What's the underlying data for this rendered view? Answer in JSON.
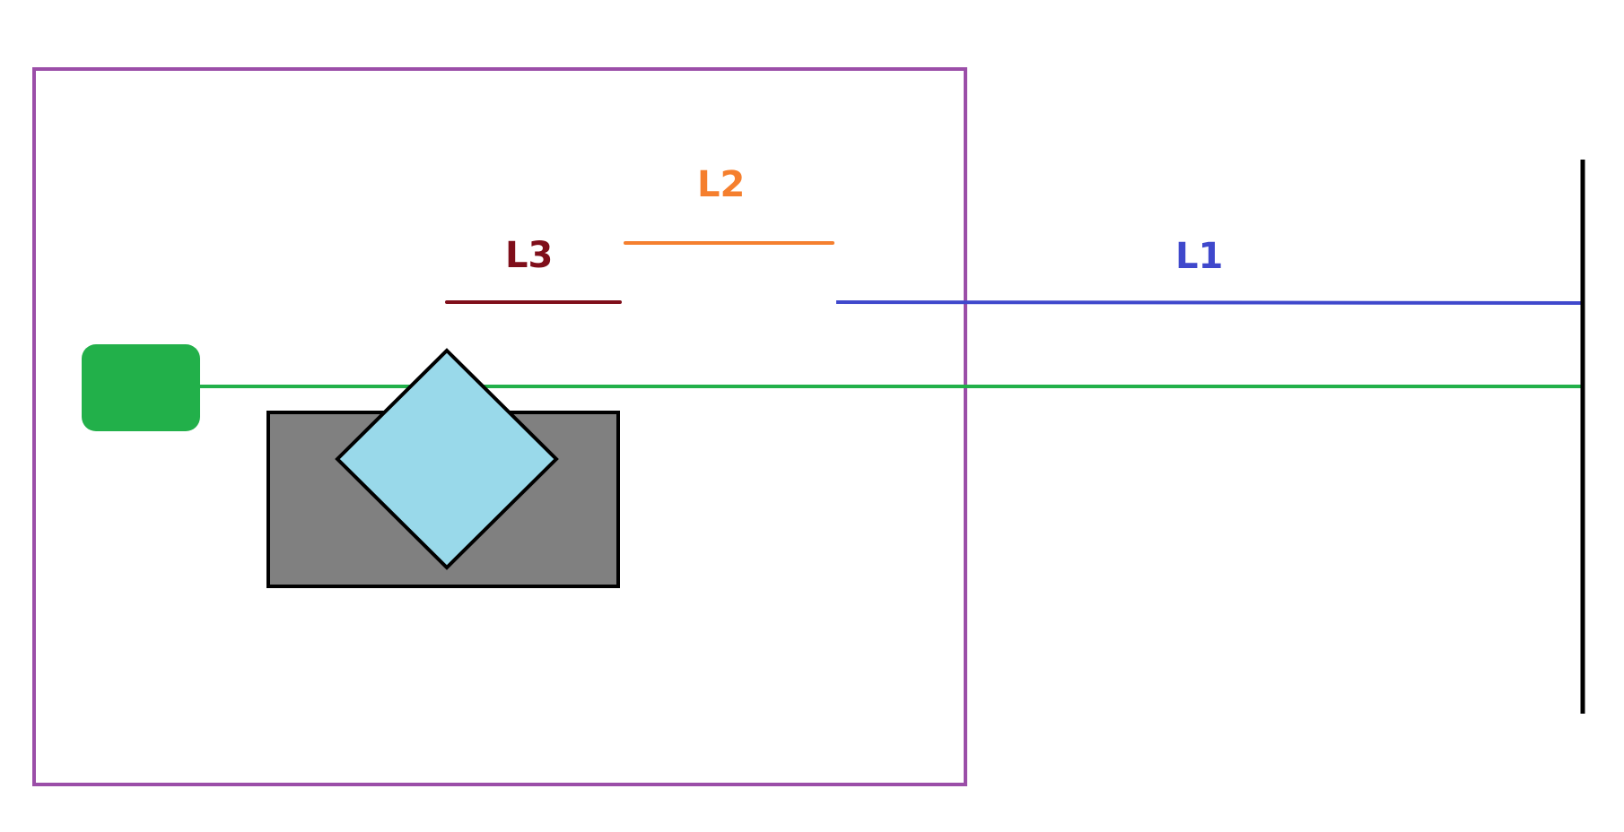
{
  "diagram": {
    "labels": {
      "l1": "L1",
      "l2": "L2",
      "l3": "L3"
    },
    "colors": {
      "enclosure": "#9b4ea8",
      "green_block": "#22b04a",
      "green_beam": "#22b04a",
      "gray_block": "#808080",
      "diamond": "#99d9ea",
      "outline": "#000000",
      "l1": "#3f48cc",
      "l2": "#f57f2e",
      "l3": "#7f0e1a",
      "screen": "#000000"
    }
  }
}
